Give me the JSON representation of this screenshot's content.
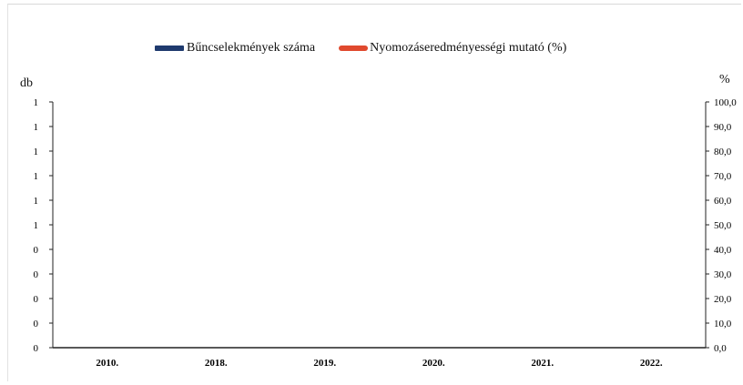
{
  "chart_data": {
    "type": "bar",
    "categories": [
      "2010.",
      "2018.",
      "2019.",
      "2020.",
      "2021.",
      "2022."
    ],
    "series": [
      {
        "name": "Bűncselekmények száma",
        "kind": "bar",
        "axis": "left",
        "color": "#1f3a6e",
        "values": [
          0,
          0,
          0,
          0,
          0,
          0
        ]
      },
      {
        "name": "Nyomozáseredményességi mutató (%)",
        "kind": "line",
        "axis": "right",
        "color": "#e0492e",
        "values": [
          null,
          null,
          null,
          null,
          null,
          null
        ]
      }
    ],
    "ylabel": "db",
    "y2label": "%",
    "yticks": [
      "0",
      "0",
      "0",
      "0",
      "0",
      "1",
      "1",
      "1",
      "1",
      "1",
      "1"
    ],
    "y2ticks": [
      "0,0",
      "10,0",
      "20,0",
      "30,0",
      "40,0",
      "50,0",
      "60,0",
      "70,0",
      "80,0",
      "90,0",
      "100,0"
    ],
    "ylim": [
      0,
      1
    ],
    "y2lim": [
      0,
      100
    ],
    "grid": false,
    "legend": "top-center"
  }
}
